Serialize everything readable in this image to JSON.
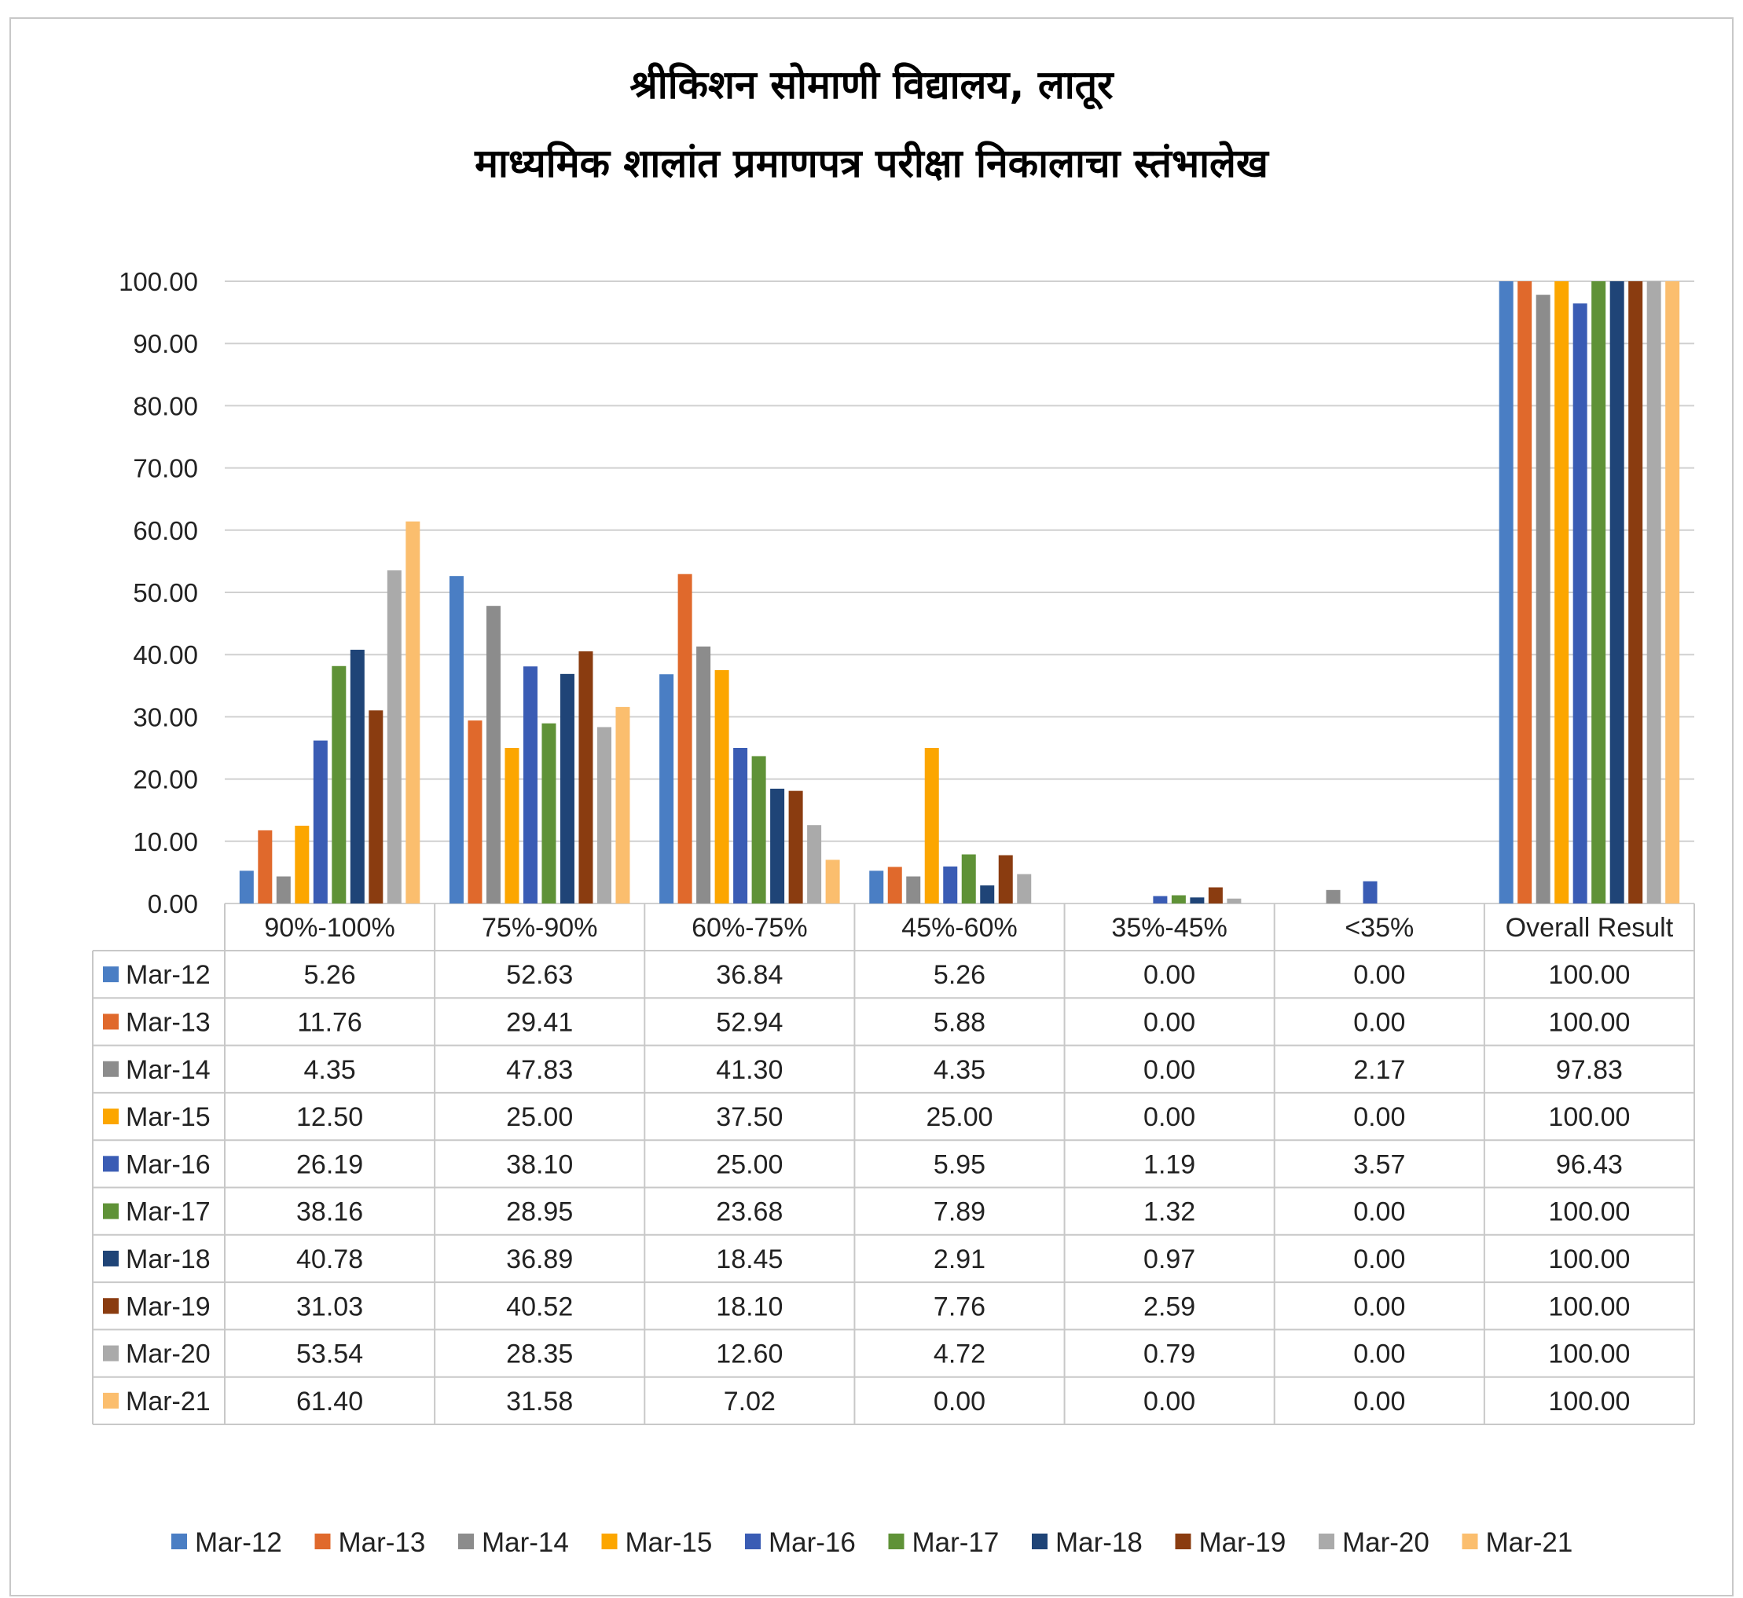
{
  "title_line1": "श्रीकिशन सोमाणी विद्यालय, लातूर",
  "title_line2": "माध्यमिक शालांत प्रमाणपत्र परीक्षा निकालाचा स्तंभालेख",
  "chart_data": {
    "type": "bar",
    "title": "श्रीकिशन सोमाणी विद्यालय, लातूर / माध्यमिक शालांत प्रमाणपत्र परीक्षा निकालाचा स्तंभालेख",
    "categories": [
      "90%-100%",
      "75%-90%",
      "60%-75%",
      "45%-60%",
      "35%-45%",
      "<35%",
      "Overall Result"
    ],
    "ylim": [
      0,
      100
    ],
    "y_ticks": [
      "0.00",
      "10.00",
      "20.00",
      "30.00",
      "40.00",
      "50.00",
      "60.00",
      "70.00",
      "80.00",
      "90.00",
      "100.00"
    ],
    "grid": true,
    "legend_position": "bottom",
    "data_table": true,
    "series": [
      {
        "name": "Mar-12",
        "color": "#4a7ec4",
        "values": [
          5.26,
          52.63,
          36.84,
          5.26,
          0.0,
          0.0,
          100.0
        ],
        "labels": [
          "5.26",
          "52.63",
          "36.84",
          "5.26",
          "0.00",
          "0.00",
          "100.00"
        ]
      },
      {
        "name": "Mar-13",
        "color": "#e0692c",
        "values": [
          11.76,
          29.41,
          52.94,
          5.88,
          0.0,
          0.0,
          100.0
        ],
        "labels": [
          "11.76",
          "29.41",
          "52.94",
          "5.88",
          "0.00",
          "0.00",
          "100.00"
        ]
      },
      {
        "name": "Mar-14",
        "color": "#8c8c8c",
        "values": [
          4.35,
          47.83,
          41.3,
          4.35,
          0.0,
          2.17,
          97.83
        ],
        "labels": [
          "4.35",
          "47.83",
          "41.30",
          "4.35",
          "0.00",
          "2.17",
          "97.83"
        ]
      },
      {
        "name": "Mar-15",
        "color": "#fca600",
        "values": [
          12.5,
          25.0,
          37.5,
          25.0,
          0.0,
          0.0,
          100.0
        ],
        "labels": [
          "12.50",
          "25.00",
          "37.50",
          "25.00",
          "0.00",
          "0.00",
          "100.00"
        ]
      },
      {
        "name": "Mar-16",
        "color": "#3a5cb4",
        "values": [
          26.19,
          38.1,
          25.0,
          5.95,
          1.19,
          3.57,
          96.43
        ],
        "labels": [
          "26.19",
          "38.10",
          "25.00",
          "5.95",
          "1.19",
          "3.57",
          "96.43"
        ]
      },
      {
        "name": "Mar-17",
        "color": "#5f9237",
        "values": [
          38.16,
          28.95,
          23.68,
          7.89,
          1.32,
          0.0,
          100.0
        ],
        "labels": [
          "38.16",
          "28.95",
          "23.68",
          "7.89",
          "1.32",
          "0.00",
          "100.00"
        ]
      },
      {
        "name": "Mar-18",
        "color": "#1f4477",
        "values": [
          40.78,
          36.89,
          18.45,
          2.91,
          0.97,
          0.0,
          100.0
        ],
        "labels": [
          "40.78",
          "36.89",
          "18.45",
          "2.91",
          "0.97",
          "0.00",
          "100.00"
        ]
      },
      {
        "name": "Mar-19",
        "color": "#8a3c10",
        "values": [
          31.03,
          40.52,
          18.1,
          7.76,
          2.59,
          0.0,
          100.0
        ],
        "labels": [
          "31.03",
          "40.52",
          "18.10",
          "7.76",
          "2.59",
          "0.00",
          "100.00"
        ]
      },
      {
        "name": "Mar-20",
        "color": "#aaaaaa",
        "values": [
          53.54,
          28.35,
          12.6,
          4.72,
          0.79,
          0.0,
          100.0
        ],
        "labels": [
          "53.54",
          "28.35",
          "12.60",
          "4.72",
          "0.79",
          "0.00",
          "100.00"
        ]
      },
      {
        "name": "Mar-21",
        "color": "#fbbe6e",
        "values": [
          61.4,
          31.58,
          7.02,
          0.0,
          0.0,
          0.0,
          100.0
        ],
        "labels": [
          "61.40",
          "31.58",
          "7.02",
          "0.00",
          "0.00",
          "0.00",
          "100.00"
        ]
      }
    ]
  }
}
